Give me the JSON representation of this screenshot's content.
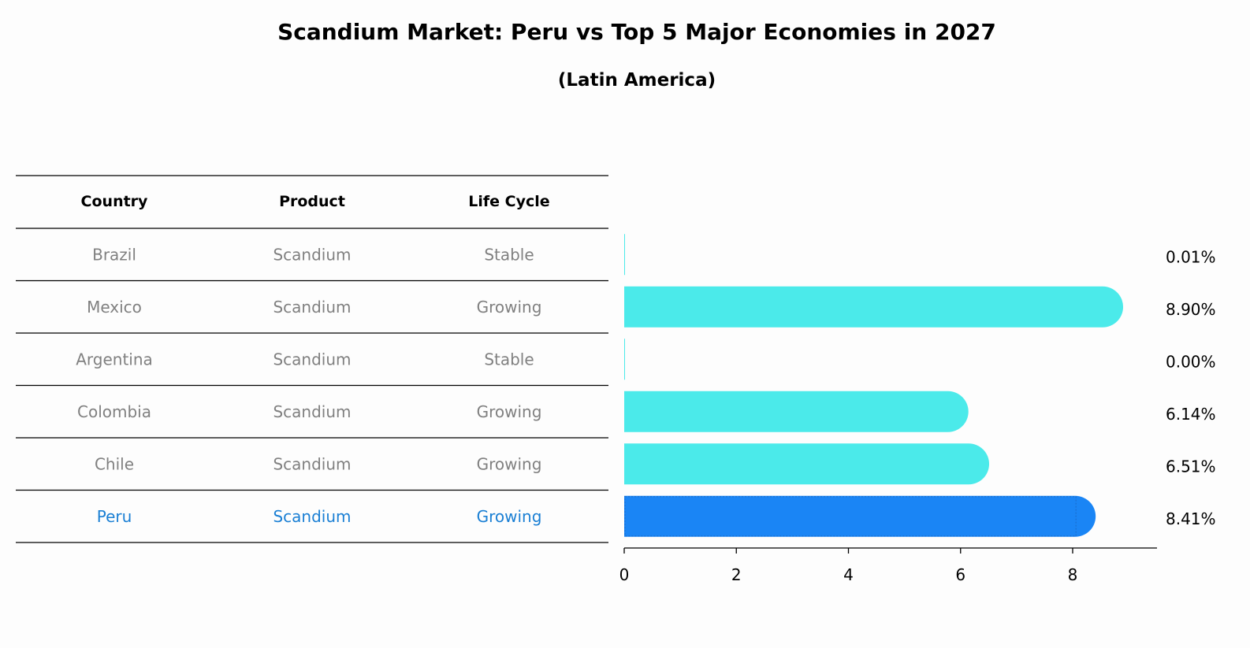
{
  "title": "Scandium Market: Peru vs Top 5 Major Economies in 2027",
  "subtitle": "(Latin America)",
  "table": {
    "headers": [
      "Country",
      "Product",
      "Life Cycle"
    ],
    "rows": [
      {
        "country": "Brazil",
        "product": "Scandium",
        "life_cycle": "Stable",
        "highlight": false
      },
      {
        "country": "Mexico",
        "product": "Scandium",
        "life_cycle": "Growing",
        "highlight": false
      },
      {
        "country": "Argentina",
        "product": "Scandium",
        "life_cycle": "Stable",
        "highlight": false
      },
      {
        "country": "Colombia",
        "product": "Scandium",
        "life_cycle": "Growing",
        "highlight": false
      },
      {
        "country": "Chile",
        "product": "Scandium",
        "life_cycle": "Growing",
        "highlight": false
      },
      {
        "country": "Peru",
        "product": "Scandium",
        "life_cycle": "Growing",
        "highlight": true
      }
    ]
  },
  "colors": {
    "bar": "#4beaea",
    "highlight_bar": "#1a85f5",
    "highlight_text": "#1a7fd4",
    "muted_text": "#808080"
  },
  "chart_data": {
    "type": "bar",
    "orientation": "horizontal",
    "categories": [
      "Brazil",
      "Mexico",
      "Argentina",
      "Colombia",
      "Chile",
      "Peru"
    ],
    "values": [
      0.01,
      8.9,
      0.0,
      6.14,
      6.51,
      8.41
    ],
    "value_labels": [
      "0.01%",
      "8.90%",
      "0.00%",
      "6.14%",
      "6.51%",
      "8.41%"
    ],
    "x_ticks": [
      "0",
      "2",
      "4",
      "6",
      "8"
    ],
    "xlim": [
      0,
      9.35
    ],
    "grid": false
  }
}
